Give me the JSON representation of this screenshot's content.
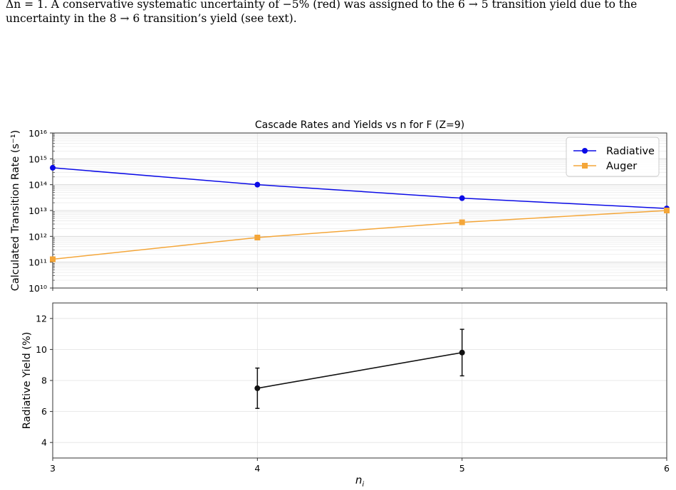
{
  "caption": {
    "line1": "Δn = 1. A conservative systematic uncertainty of −5% (red) was assigned to the 6 → 5 transition yield due to the",
    "line2": "uncertainty in the 8 → 6 transition’s yield (see text)."
  },
  "chart_data": [
    {
      "type": "line",
      "title": "Cascade Rates and Yields vs n for F (Z=9)",
      "xlabel": "",
      "ylabel": "Calculated Transition Rate (s⁻¹)",
      "yscale": "log",
      "ylim": [
        10000000000.0,
        1e+16
      ],
      "xlim": [
        3,
        6
      ],
      "grid": true,
      "legend": "top-right",
      "y_tick_labels": [
        "10¹⁰",
        "10¹¹",
        "10¹²",
        "10¹³",
        "10¹⁴",
        "10¹⁵",
        "10¹⁶"
      ],
      "x": [
        3,
        4,
        5,
        6
      ],
      "series": [
        {
          "name": "Radiative",
          "color": "#0a0ae6",
          "marker": "circle",
          "values": [
            450000000000000.0,
            100000000000000.0,
            30000000000000.0,
            12000000000000.0
          ]
        },
        {
          "name": "Auger",
          "color": "#f4a639",
          "marker": "square",
          "values": [
            130000000000.0,
            900000000000.0,
            3500000000000.0,
            10000000000000.0
          ]
        }
      ]
    },
    {
      "type": "line",
      "title": "",
      "xlabel": "n_i",
      "ylabel": "Radiative Yield (%)",
      "ylim": [
        3,
        13
      ],
      "xlim": [
        3,
        6
      ],
      "grid": true,
      "y_ticks": [
        4,
        6,
        8,
        10,
        12
      ],
      "x_ticks": [
        3,
        4,
        5,
        6
      ],
      "x": [
        4,
        5
      ],
      "series": [
        {
          "name": "",
          "color": "#111111",
          "values": [
            7.5,
            9.8
          ],
          "errors": [
            1.3,
            1.5
          ]
        }
      ]
    }
  ]
}
